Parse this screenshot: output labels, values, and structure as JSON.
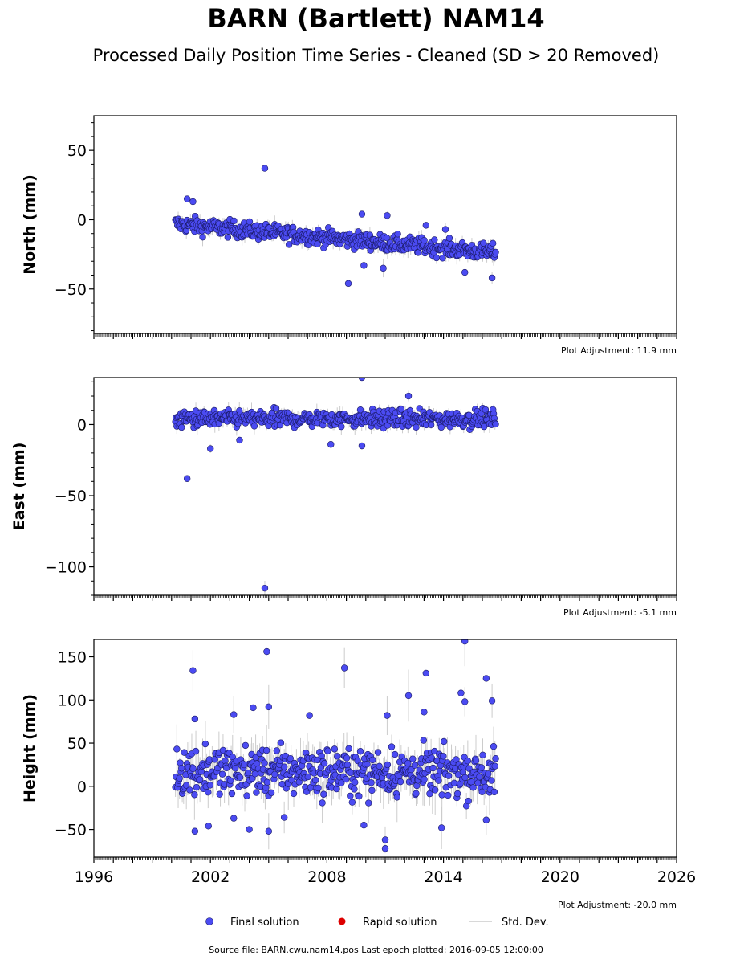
{
  "figure": {
    "title": "BARN (Bartlett) NAM14",
    "subtitle": "Processed Daily Position Time Series - Cleaned (SD > 20 Removed)",
    "source_text": "Source file: BARN.cwu.nam14.pos  Last epoch plotted: 2016-09-05 12:00:00"
  },
  "legend": {
    "final": "Final solution",
    "rapid": "Rapid solution",
    "std": "Std. Dev."
  },
  "colors": {
    "final": "#4b4bf2",
    "final_edge": "#1a1a66",
    "rapid": "#dd0000",
    "std": "#cccccc",
    "text": "#000000"
  },
  "chart_data": [
    {
      "type": "scatter",
      "component": "north",
      "ylabel": "North (mm)",
      "adjustment": "Plot Adjustment: 11.9 mm",
      "xlim": [
        1996,
        2026
      ],
      "ylim": [
        -82,
        75
      ],
      "yticks": [
        -50,
        0,
        50
      ],
      "xticks": [
        1996,
        2002,
        2008,
        2014,
        2020,
        2026
      ],
      "trend": {
        "x": [
          2000.2,
          2016.7
        ],
        "y": [
          -3,
          -24
        ]
      },
      "scatter_sd": 3,
      "outliers": [
        [
          2004.8,
          37
        ],
        [
          2000.8,
          15
        ],
        [
          2001.1,
          13
        ],
        [
          2009.8,
          4
        ],
        [
          2011.1,
          3
        ],
        [
          2013.1,
          -4
        ],
        [
          2014.1,
          -7
        ],
        [
          2009.1,
          -46
        ],
        [
          2016.5,
          -42
        ],
        [
          2015.1,
          -38
        ],
        [
          2010.9,
          -35
        ],
        [
          2009.9,
          -33
        ]
      ]
    },
    {
      "type": "scatter",
      "component": "east",
      "ylabel": "East (mm)",
      "adjustment": "Plot Adjustment: -5.1 mm",
      "xlim": [
        1996,
        2026
      ],
      "ylim": [
        -120,
        33
      ],
      "yticks": [
        -100,
        -50,
        0
      ],
      "xticks": [
        1996,
        2002,
        2008,
        2014,
        2020,
        2026
      ],
      "trend": {
        "x": [
          2000.2,
          2016.7
        ],
        "y": [
          4,
          4
        ]
      },
      "scatter_sd": 3,
      "outliers": [
        [
          2004.8,
          -115
        ],
        [
          2000.8,
          -38
        ],
        [
          2002.0,
          -17
        ],
        [
          2009.8,
          33
        ],
        [
          2009.8,
          -15
        ],
        [
          2008.2,
          -14
        ],
        [
          2012.2,
          20
        ],
        [
          2003.5,
          -11
        ]
      ]
    },
    {
      "type": "scatter",
      "component": "height",
      "ylabel": "Height (mm)",
      "adjustment": "Plot Adjustment: -20.0 mm",
      "xlim": [
        1996,
        2026
      ],
      "ylim": [
        -82,
        170
      ],
      "yticks": [
        -50,
        0,
        50,
        100,
        150
      ],
      "xticks": [
        1996,
        2002,
        2008,
        2014,
        2020,
        2026
      ],
      "trend": {
        "x": [
          2000.2,
          2016.7
        ],
        "y": [
          18,
          15
        ]
      },
      "scatter_sd": 14,
      "outliers": [
        [
          2001.1,
          134
        ],
        [
          2004.9,
          156
        ],
        [
          2008.9,
          137
        ],
        [
          2013.1,
          131
        ],
        [
          2015.1,
          168
        ],
        [
          2016.2,
          125
        ],
        [
          2012.2,
          105
        ],
        [
          2014.9,
          108
        ],
        [
          2016.5,
          99
        ],
        [
          2001.2,
          78
        ],
        [
          2005.0,
          92
        ],
        [
          2004.2,
          91
        ],
        [
          2003.2,
          83
        ],
        [
          2007.1,
          82
        ],
        [
          2011.1,
          82
        ],
        [
          2013.0,
          86
        ],
        [
          2015.1,
          98
        ],
        [
          2011.0,
          -72
        ],
        [
          2011.0,
          -62
        ],
        [
          2001.2,
          -52
        ],
        [
          2005.0,
          -52
        ],
        [
          2004.0,
          -50
        ],
        [
          2013.9,
          -48
        ],
        [
          2001.9,
          -46
        ],
        [
          2005.8,
          -36
        ],
        [
          2003.2,
          -37
        ],
        [
          2016.2,
          -39
        ],
        [
          2009.9,
          -45
        ]
      ]
    }
  ]
}
